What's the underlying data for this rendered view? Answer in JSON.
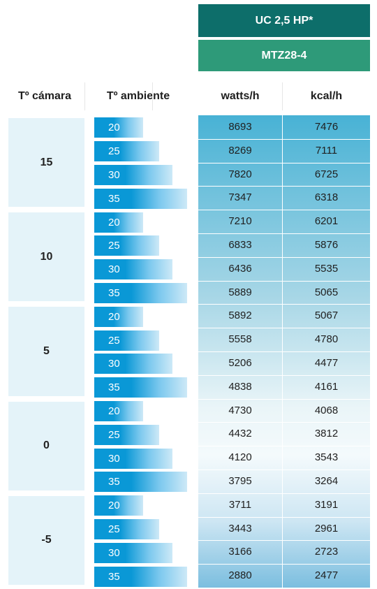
{
  "header": {
    "model": "UC 2,5 HP*",
    "compressor": "MTZ28-4"
  },
  "columns": {
    "camara": "Tº cámara",
    "ambiente": "Tº ambiente",
    "watts": "watts/h",
    "kcal": "kcal/h"
  },
  "groups": [
    {
      "camara": "15",
      "rows": [
        {
          "ambiente": "20",
          "watts": "8693",
          "kcal": "7476"
        },
        {
          "ambiente": "25",
          "watts": "8269",
          "kcal": "7111"
        },
        {
          "ambiente": "30",
          "watts": "7820",
          "kcal": "6725"
        },
        {
          "ambiente": "35",
          "watts": "7347",
          "kcal": "6318"
        }
      ]
    },
    {
      "camara": "10",
      "rows": [
        {
          "ambiente": "20",
          "watts": "7210",
          "kcal": "6201"
        },
        {
          "ambiente": "25",
          "watts": "6833",
          "kcal": "5876"
        },
        {
          "ambiente": "30",
          "watts": "6436",
          "kcal": "5535"
        },
        {
          "ambiente": "35",
          "watts": "5889",
          "kcal": "5065"
        }
      ]
    },
    {
      "camara": "5",
      "rows": [
        {
          "ambiente": "20",
          "watts": "5892",
          "kcal": "5067"
        },
        {
          "ambiente": "25",
          "watts": "5558",
          "kcal": "4780"
        },
        {
          "ambiente": "30",
          "watts": "5206",
          "kcal": "4477"
        },
        {
          "ambiente": "35",
          "watts": "4838",
          "kcal": "4161"
        }
      ]
    },
    {
      "camara": "0",
      "rows": [
        {
          "ambiente": "20",
          "watts": "4730",
          "kcal": "4068"
        },
        {
          "ambiente": "25",
          "watts": "4432",
          "kcal": "3812"
        },
        {
          "ambiente": "30",
          "watts": "4120",
          "kcal": "3543"
        },
        {
          "ambiente": "35",
          "watts": "3795",
          "kcal": "3264"
        }
      ]
    },
    {
      "camara": "-5",
      "rows": [
        {
          "ambiente": "20",
          "watts": "3711",
          "kcal": "3191"
        },
        {
          "ambiente": "25",
          "watts": "3443",
          "kcal": "2961"
        },
        {
          "ambiente": "30",
          "watts": "3166",
          "kcal": "2723"
        },
        {
          "ambiente": "35",
          "watts": "2880",
          "kcal": "2477"
        }
      ]
    }
  ],
  "colors": {
    "header_dark": "#0d6e6a",
    "header_light": "#2e9a79",
    "bar_blue": "#0a98d6",
    "camara_bg": "#e4f3f9"
  }
}
